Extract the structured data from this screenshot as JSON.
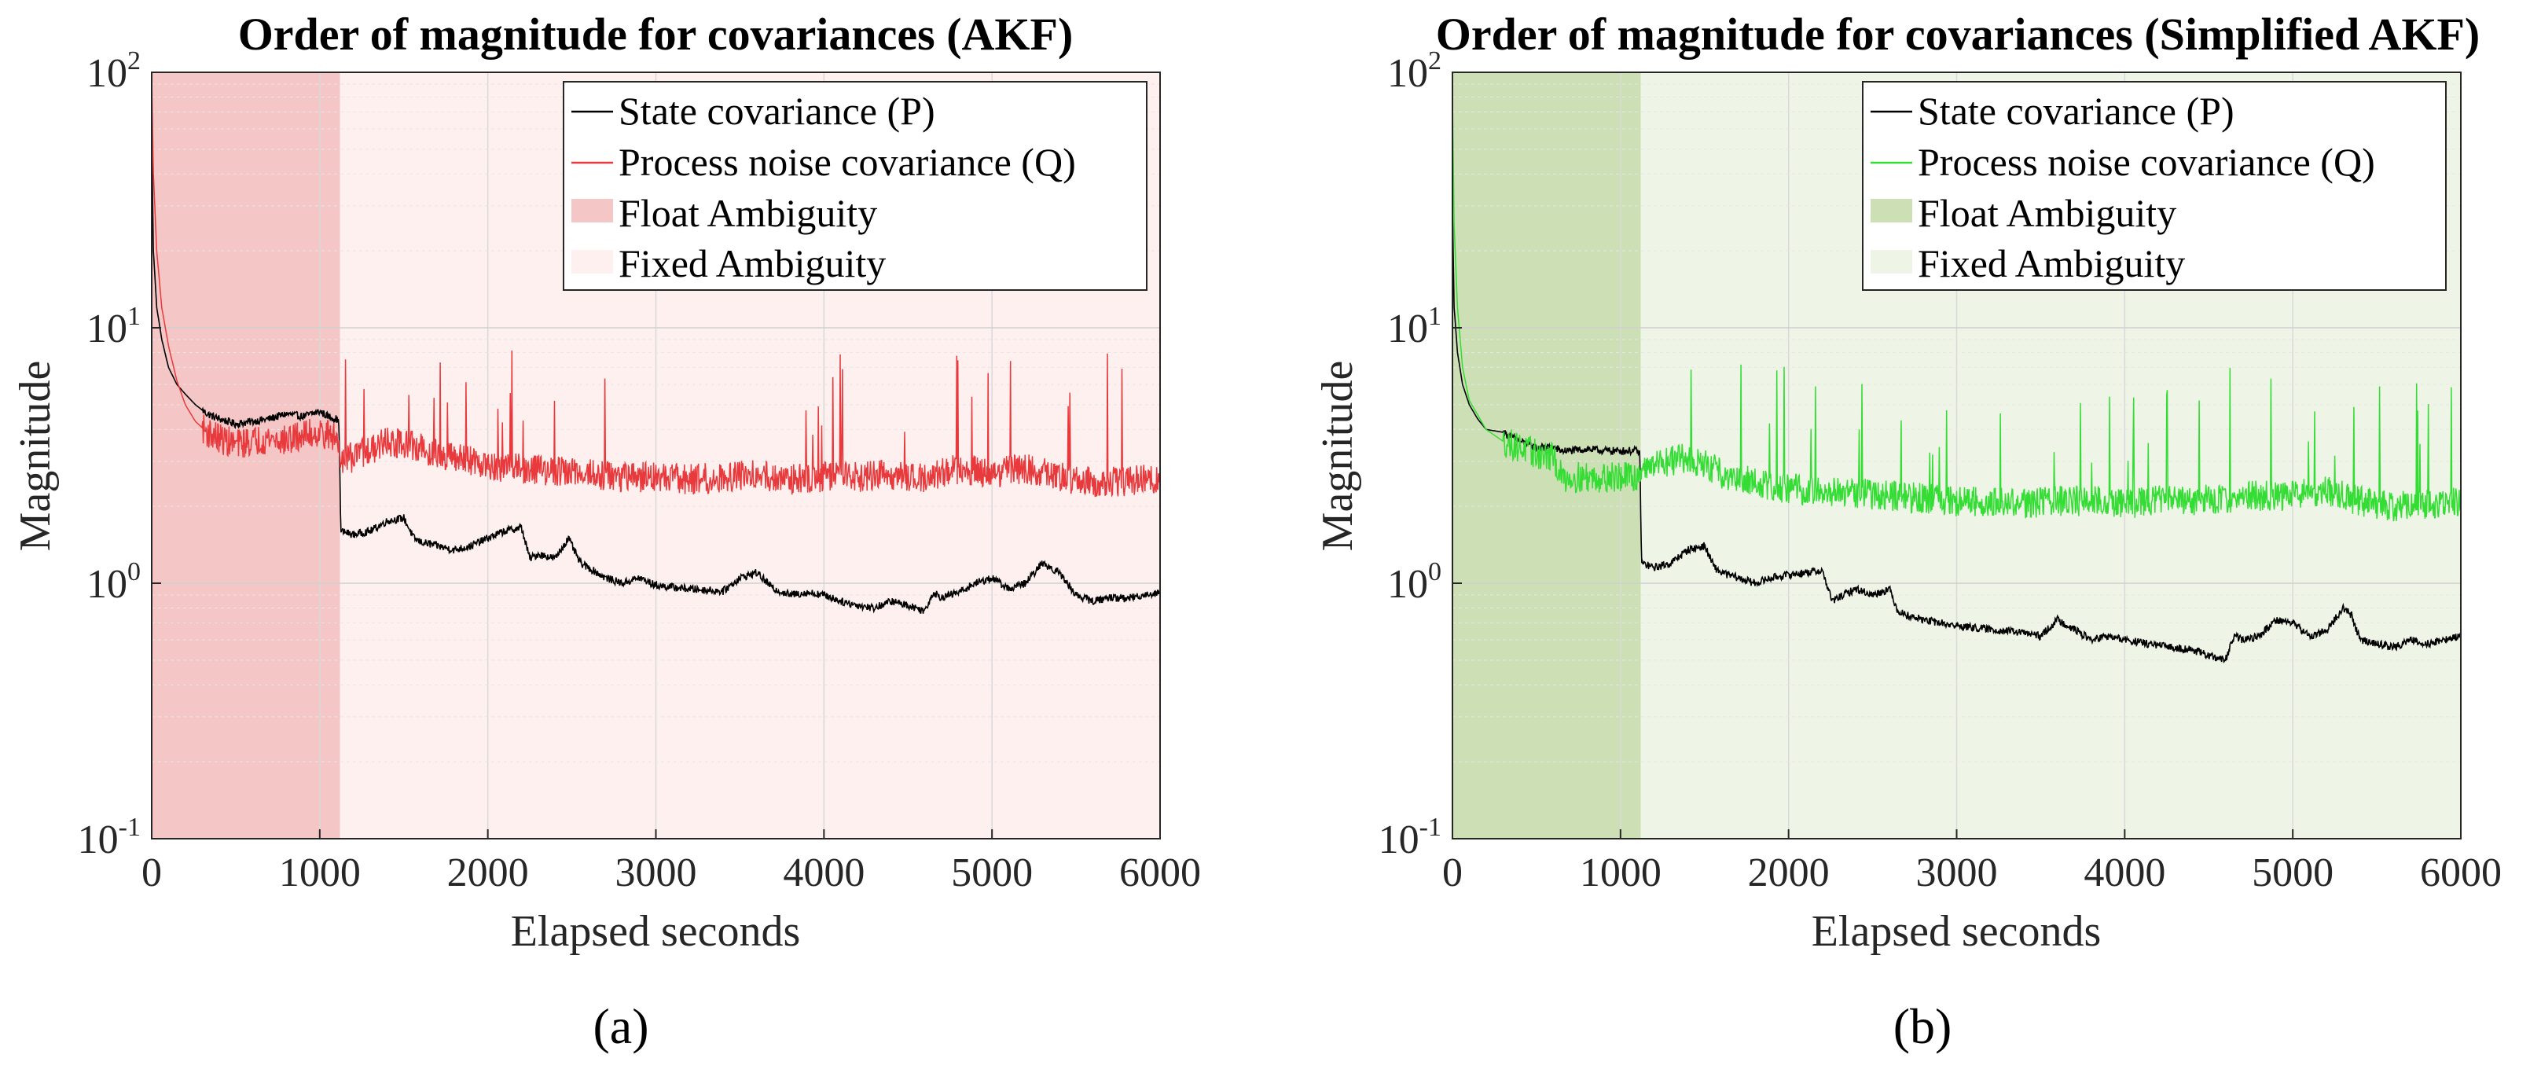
{
  "chart_data": [
    {
      "type": "line",
      "panel_label": "(a)",
      "title": "Order of magnitude for covariances (AKF)",
      "xlabel": "Elapsed seconds",
      "ylabel": "Magnitude",
      "xlim": [
        0,
        6000
      ],
      "ylim": [
        0.1,
        100
      ],
      "yscale": "log",
      "grid": true,
      "xticks": [
        0,
        1000,
        2000,
        3000,
        4000,
        5000,
        6000
      ],
      "xtick_labels": [
        "0",
        "1000",
        "2000",
        "3000",
        "4000",
        "5000",
        "6000"
      ],
      "yticks": [
        {
          "value": 0.1,
          "base": "10",
          "exp": "-1"
        },
        {
          "value": 1,
          "base": "10",
          "exp": "0"
        },
        {
          "value": 10,
          "base": "10",
          "exp": "1"
        },
        {
          "value": 100,
          "base": "10",
          "exp": "2"
        }
      ],
      "regions": [
        {
          "name": "Float Ambiguity",
          "x": [
            0,
            1120
          ],
          "color": "#f4c6c6"
        },
        {
          "name": "Fixed Ambiguity",
          "x": [
            1120,
            6000
          ],
          "color": "#fdf0ef"
        }
      ],
      "legend": {
        "position": "top-right",
        "entries": [
          "State covariance (P)",
          "Process noise covariance (Q)",
          "Float Ambiguity",
          "Fixed Ambiguity"
        ]
      },
      "series": [
        {
          "name": "State covariance (P)",
          "color": "#000000",
          "noise": 0.015,
          "x": [
            0,
            10,
            30,
            60,
            100,
            150,
            200,
            260,
            330,
            400,
            500,
            600,
            700,
            800,
            900,
            1000,
            1050,
            1100,
            1115,
            1125,
            1200,
            1300,
            1400,
            1500,
            1560,
            1600,
            1700,
            1800,
            1900,
            2000,
            2100,
            2200,
            2250,
            2300,
            2400,
            2480,
            2550,
            2600,
            2700,
            2800,
            2900,
            3000,
            3200,
            3400,
            3500,
            3600,
            3700,
            3800,
            3900,
            4000,
            4100,
            4200,
            4300,
            4400,
            4500,
            4600,
            4650,
            4700,
            4800,
            4900,
            5000,
            5100,
            5200,
            5300,
            5350,
            5400,
            5500,
            5600,
            5700,
            5800,
            5900,
            6000
          ],
          "y": [
            60,
            20,
            12,
            9,
            7,
            6,
            5.5,
            5,
            4.6,
            4.4,
            4.2,
            4.3,
            4.4,
            4.6,
            4.5,
            4.7,
            4.5,
            4.4,
            4.2,
            1.6,
            1.55,
            1.6,
            1.75,
            1.8,
            1.5,
            1.45,
            1.4,
            1.35,
            1.4,
            1.5,
            1.6,
            1.65,
            1.25,
            1.3,
            1.25,
            1.5,
            1.2,
            1.15,
            1.05,
            1.0,
            1.05,
            0.98,
            0.95,
            0.93,
            1.05,
            1.1,
            0.95,
            0.9,
            0.92,
            0.9,
            0.85,
            0.82,
            0.8,
            0.85,
            0.82,
            0.78,
            0.92,
            0.88,
            0.92,
            1.0,
            1.05,
            0.95,
            1.0,
            1.2,
            1.15,
            1.1,
            0.9,
            0.85,
            0.88,
            0.87,
            0.9,
            0.92
          ]
        },
        {
          "name": "Process noise covariance (Q)",
          "color": "#e8393c",
          "noise": 0.06,
          "x": [
            0,
            10,
            30,
            60,
            100,
            150,
            200,
            260,
            330,
            400,
            500,
            600,
            700,
            800,
            900,
            1000,
            1100,
            1130,
            1200,
            1300,
            1400,
            1500,
            1600,
            1700,
            1800,
            1900,
            2000,
            2200,
            2400,
            2600,
            2800,
            3000,
            3200,
            3400,
            3600,
            3800,
            4000,
            4200,
            4400,
            4600,
            4800,
            5000,
            5200,
            5400,
            5600,
            5800,
            6000
          ],
          "y": [
            95,
            40,
            20,
            12,
            8.5,
            6.2,
            5,
            4.3,
            3.9,
            3.7,
            3.5,
            3.6,
            3.7,
            3.6,
            3.8,
            3.9,
            3.7,
            3.1,
            3.1,
            3.3,
            3.6,
            3.5,
            3.4,
            3.2,
            3.1,
            3.0,
            2.9,
            2.8,
            2.75,
            2.7,
            2.6,
            2.6,
            2.55,
            2.6,
            2.65,
            2.55,
            2.6,
            2.6,
            2.65,
            2.6,
            2.8,
            2.7,
            2.8,
            2.6,
            2.5,
            2.5,
            2.6
          ]
        }
      ]
    },
    {
      "type": "line",
      "panel_label": "(b)",
      "title": "Order of magnitude for covariances (Simplified AKF)",
      "xlabel": "Elapsed seconds",
      "ylabel": "Magnitude",
      "xlim": [
        0,
        6000
      ],
      "ylim": [
        0.1,
        100
      ],
      "yscale": "log",
      "grid": true,
      "xticks": [
        0,
        1000,
        2000,
        3000,
        4000,
        5000,
        6000
      ],
      "xtick_labels": [
        "0",
        "1000",
        "2000",
        "3000",
        "4000",
        "5000",
        "6000"
      ],
      "yticks": [
        {
          "value": 0.1,
          "base": "10",
          "exp": "-1"
        },
        {
          "value": 1,
          "base": "10",
          "exp": "0"
        },
        {
          "value": 10,
          "base": "10",
          "exp": "1"
        },
        {
          "value": 100,
          "base": "10",
          "exp": "2"
        }
      ],
      "regions": [
        {
          "name": "Float Ambiguity",
          "x": [
            0,
            1120
          ],
          "color": "#cde0b5"
        },
        {
          "name": "Fixed Ambiguity",
          "x": [
            1120,
            6000
          ],
          "color": "#eef4e6"
        }
      ],
      "legend": {
        "position": "top-right",
        "entries": [
          "State covariance (P)",
          "Process noise covariance (Q)",
          "Float Ambiguity",
          "Fixed Ambiguity"
        ]
      },
      "series": [
        {
          "name": "State covariance (P)",
          "color": "#000000",
          "noise": 0.015,
          "x": [
            0,
            10,
            30,
            60,
            100,
            150,
            200,
            300,
            400,
            450,
            500,
            600,
            650,
            700,
            800,
            900,
            1000,
            1100,
            1115,
            1125,
            1200,
            1300,
            1400,
            1500,
            1560,
            1600,
            1700,
            1800,
            1900,
            2000,
            2100,
            2200,
            2260,
            2300,
            2400,
            2500,
            2600,
            2650,
            2700,
            2800,
            2900,
            3000,
            3200,
            3400,
            3500,
            3600,
            3700,
            3800,
            3900,
            4000,
            4200,
            4400,
            4500,
            4600,
            4650,
            4700,
            4800,
            4900,
            5000,
            5100,
            5200,
            5300,
            5350,
            5400,
            5500,
            5600,
            5700,
            5800,
            5900,
            6000
          ],
          "y": [
            30,
            12,
            8,
            6,
            5,
            4.4,
            4.0,
            3.9,
            3.6,
            3.5,
            3.4,
            3.4,
            3.3,
            3.3,
            3.35,
            3.3,
            3.3,
            3.3,
            3.2,
            1.2,
            1.15,
            1.2,
            1.35,
            1.4,
            1.15,
            1.1,
            1.05,
            1.0,
            1.05,
            1.08,
            1.1,
            1.12,
            0.85,
            0.88,
            0.95,
            0.9,
            0.95,
            0.78,
            0.75,
            0.72,
            0.7,
            0.68,
            0.66,
            0.64,
            0.62,
            0.72,
            0.66,
            0.6,
            0.62,
            0.6,
            0.57,
            0.55,
            0.52,
            0.5,
            0.62,
            0.6,
            0.62,
            0.72,
            0.7,
            0.62,
            0.65,
            0.8,
            0.75,
            0.6,
            0.58,
            0.56,
            0.6,
            0.58,
            0.6,
            0.62
          ]
        },
        {
          "name": "Process noise covariance (Q)",
          "color": "#33dd33",
          "noise": 0.06,
          "x": [
            0,
            10,
            30,
            60,
            100,
            200,
            300,
            400,
            500,
            600,
            650,
            700,
            800,
            900,
            1000,
            1100,
            1130,
            1200,
            1300,
            1400,
            1500,
            1600,
            1700,
            1800,
            1900,
            2000,
            2200,
            2400,
            2600,
            2800,
            3000,
            3200,
            3400,
            3600,
            3800,
            4000,
            4200,
            4400,
            4600,
            4800,
            5000,
            5200,
            5400,
            5600,
            5800,
            6000
          ],
          "y": [
            80,
            25,
            12,
            7,
            5.2,
            4.0,
            3.6,
            3.4,
            3.2,
            3.1,
            2.6,
            2.6,
            2.6,
            2.6,
            2.6,
            2.6,
            2.9,
            2.9,
            3.0,
            3.1,
            2.9,
            2.7,
            2.6,
            2.5,
            2.4,
            2.35,
            2.3,
            2.25,
            2.2,
            2.15,
            2.1,
            2.1,
            2.05,
            2.1,
            2.1,
            2.05,
            2.1,
            2.1,
            2.15,
            2.2,
            2.2,
            2.3,
            2.1,
            2.0,
            2.05,
            2.1
          ]
        }
      ]
    }
  ]
}
